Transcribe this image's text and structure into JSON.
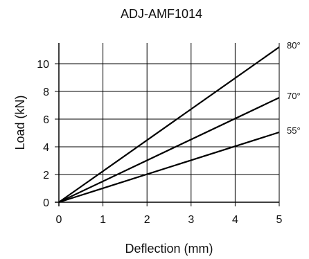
{
  "chart_data": {
    "type": "line",
    "title": "ADJ-AMF1014",
    "xlabel": "Deflection (mm)",
    "ylabel": "Load (kN)",
    "xlim": [
      0,
      5
    ],
    "ylim": [
      0,
      11.5
    ],
    "xticks": [
      0,
      1,
      2,
      3,
      4,
      5
    ],
    "yticks": [
      0,
      2,
      4,
      6,
      8,
      10
    ],
    "grid": true,
    "series": [
      {
        "name": "80°",
        "x": [
          0,
          5
        ],
        "y": [
          0,
          11.2
        ]
      },
      {
        "name": "70°",
        "x": [
          0,
          5
        ],
        "y": [
          0,
          7.55
        ]
      },
      {
        "name": "55°",
        "x": [
          0,
          5
        ],
        "y": [
          0,
          5.05
        ]
      }
    ]
  }
}
